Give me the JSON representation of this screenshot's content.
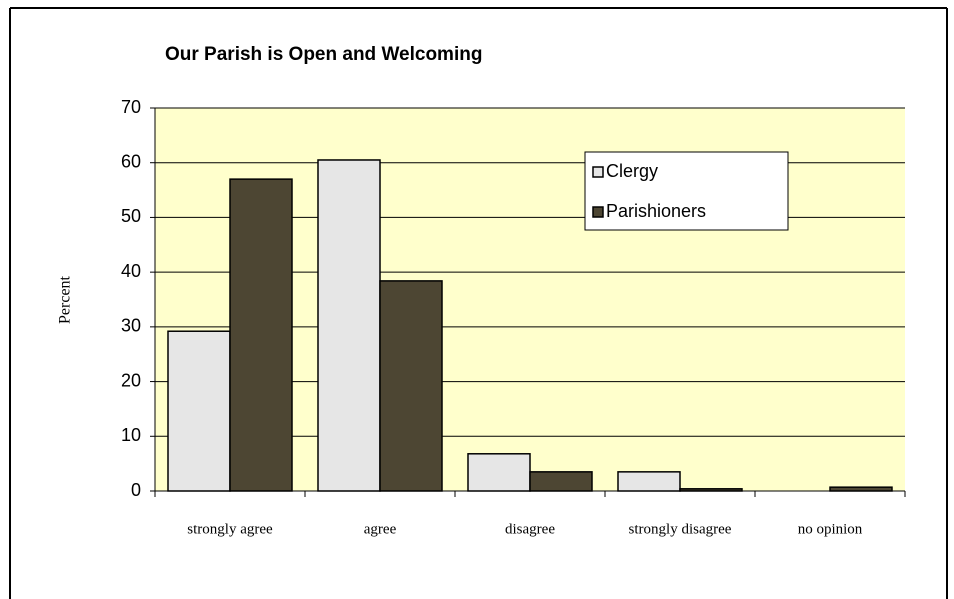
{
  "chart_data": {
    "type": "bar",
    "title": "Our Parish is Open and Welcoming",
    "y_label": "Percent",
    "categories": [
      "strongly agree",
      "agree",
      "disagree",
      "strongly disagree",
      "no opinion"
    ],
    "series": [
      {
        "name": "Clergy",
        "color": "#e6e6e6",
        "values": [
          29.2,
          60.5,
          6.8,
          3.5,
          0
        ]
      },
      {
        "name": "Parishioners",
        "color": "#4d4633",
        "values": [
          57,
          38.4,
          3.5,
          0.4,
          0.7
        ]
      }
    ],
    "ylim": [
      0,
      70
    ],
    "yticks": [
      0,
      10,
      20,
      30,
      40,
      50,
      60,
      70
    ],
    "grid": true,
    "legend": "upper right",
    "plot_background": "#ffffcc"
  }
}
